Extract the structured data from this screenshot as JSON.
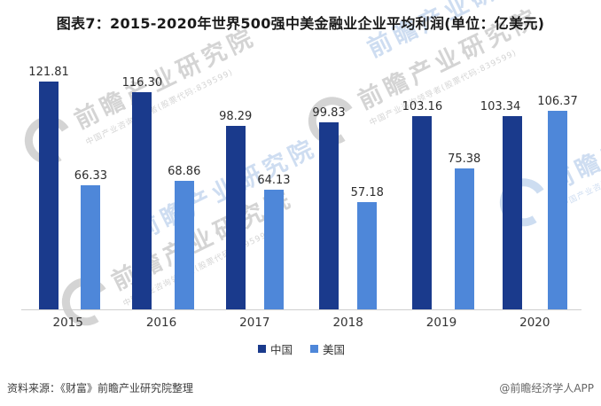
{
  "chart_data": {
    "type": "bar",
    "title": "图表7：2015-2020年世界500强中美金融业企业平均利润(单位：亿美元)",
    "unit": "亿美元",
    "categories": [
      "2015",
      "2016",
      "2017",
      "2018",
      "2019",
      "2020"
    ],
    "series": [
      {
        "name": "中国",
        "color": "#1A3A8C",
        "values": [
          121.81,
          116.3,
          98.29,
          99.83,
          103.16,
          103.34
        ]
      },
      {
        "name": "美国",
        "color": "#4E87D9",
        "values": [
          66.33,
          68.86,
          64.13,
          57.18,
          75.38,
          106.37
        ]
      }
    ],
    "ylim": [
      0,
      130
    ],
    "grid": false,
    "y_axis": "hidden",
    "legend_position": "bottom",
    "value_labels": true,
    "value_label_decimals": 2
  },
  "legend": {
    "items": [
      {
        "label": "中国",
        "color": "#1A3A8C"
      },
      {
        "label": "美国",
        "color": "#4E87D9"
      }
    ]
  },
  "footer": {
    "source_note": "资料来源：《财富》前瞻产业研究院整理",
    "credit": "@前瞻经济学人APP"
  },
  "watermark": {
    "brand_text": "前瞻产业研究院",
    "tagline_text": "中国产业咨询领导者(股票代码:839599)"
  }
}
